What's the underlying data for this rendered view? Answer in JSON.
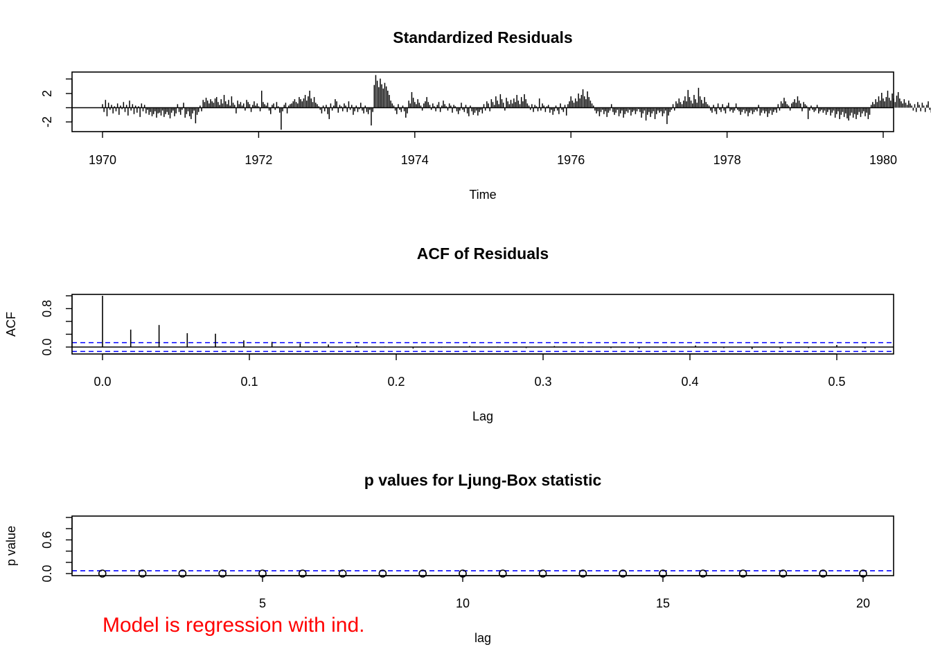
{
  "chart_data": [
    {
      "type": "bar",
      "title": "Standardized Residuals",
      "xlabel": "Time",
      "ylabel": "",
      "xlim": [
        1970,
        1979.75
      ],
      "ylim": [
        -3.2,
        4.8
      ],
      "x_ticks": [
        "1970",
        "1972",
        "1974",
        "1976",
        "1978",
        "1980"
      ],
      "y_ticks": [
        "-2",
        "2"
      ],
      "x_start": 1970,
      "x_step": 0.019230769,
      "values": [
        0.5,
        -0.6,
        1.1,
        -1.2,
        0.7,
        -0.3,
        0.4,
        -0.8,
        0.2,
        -0.5,
        0.6,
        -1.0,
        0.3,
        -0.2,
        0.8,
        -0.6,
        0.4,
        -1.1,
        1.0,
        -0.4,
        0.5,
        -0.9,
        0.3,
        -0.7,
        0.2,
        -1.3,
        0.6,
        -0.5,
        0.4,
        -0.8,
        -0.3,
        -1.0,
        -0.6,
        -1.2,
        -0.9,
        -0.5,
        -1.4,
        -0.8,
        -0.7,
        -1.1,
        -0.4,
        -1.3,
        -0.9,
        -0.6,
        -1.0,
        -1.5,
        -0.7,
        -0.4,
        -1.2,
        -0.8,
        0.5,
        -0.6,
        -1.0,
        -0.3,
        0.7,
        -1.4,
        -0.9,
        -0.5,
        -1.2,
        -1.6,
        -0.8,
        -0.4,
        -2.2,
        -1.0,
        -0.6,
        0.3,
        -0.5,
        1.1,
        0.8,
        1.4,
        1.0,
        0.6,
        1.2,
        0.9,
        0.7,
        1.3,
        1.5,
        0.8,
        0.4,
        1.2,
        0.6,
        1.8,
        0.9,
        0.5,
        1.1,
        0.3,
        1.6,
        0.7,
        0.4,
        -0.8,
        1.0,
        0.5,
        0.8,
        0.3,
        0.6,
        -0.4,
        1.1,
        0.8,
        0.5,
        -0.6,
        0.4,
        0.9,
        0.3,
        0.6,
        0.2,
        -0.5,
        2.4,
        0.8,
        0.5,
        0.3,
        0.7,
        -0.4,
        -0.9,
        0.4,
        0.6,
        -0.3,
        0.8,
        0.2,
        -0.7,
        -3.1,
        -0.5,
        0.4,
        0.7,
        -0.8,
        0.3,
        0.5,
        0.6,
        0.9,
        1.2,
        0.8,
        0.6,
        1.5,
        1.2,
        0.9,
        1.3,
        1.8,
        1.0,
        1.6,
        2.4,
        1.3,
        0.8,
        1.5,
        0.7,
        0.5,
        0.2,
        -0.3,
        -0.8,
        0.3,
        -0.5,
        0.4,
        -0.9,
        -1.6,
        0.6,
        -0.4,
        0.3,
        1.2,
        0.9,
        -0.7,
        0.4,
        0.2,
        -0.5,
        0.6,
        0.3,
        -0.6,
        0.9,
        -0.3,
        0.4,
        -1.0,
        -0.5,
        0.3,
        -0.6,
        -0.2,
        0.7,
        -0.4,
        -0.8,
        0.3,
        -0.6,
        -0.9,
        -0.3,
        -2.5,
        -0.6,
        3.2,
        4.6,
        3.8,
        2.9,
        4.1,
        3.3,
        2.7,
        3.5,
        3.0,
        2.4,
        1.8,
        1.0,
        0.6,
        0.3,
        -0.4,
        -0.9,
        0.5,
        -0.3,
        -0.6,
        0.3,
        -0.5,
        -1.4,
        -0.8,
        1.0,
        0.6,
        2.2,
        1.4,
        0.8,
        0.5,
        1.2,
        0.7,
        0.3,
        -0.4,
        0.6,
        0.9,
        1.5,
        0.8,
        0.4,
        -0.3,
        0.6,
        0.2,
        -0.5,
        0.4,
        0.8,
        -0.6,
        0.3,
        1.0,
        0.5,
        0.2,
        -0.4,
        0.6,
        0.3,
        -0.7,
        0.4,
        0.2,
        -0.5,
        -0.9,
        -0.4,
        0.7,
        -0.3,
        -0.6,
        0.4,
        -0.8,
        -1.2,
        0.3,
        -0.5,
        -1.0,
        -0.7,
        -0.4,
        -1.1,
        -0.6,
        -0.3,
        -0.8,
        0.5,
        -0.4,
        0.9,
        0.6,
        -0.5,
        1.2,
        0.8,
        0.4,
        1.6,
        1.0,
        0.5,
        1.9,
        1.2,
        0.7,
        -0.4,
        1.4,
        0.9,
        0.5,
        1.1,
        0.6,
        1.3,
        0.8,
        1.8,
        1.0,
        0.5,
        1.5,
        0.9,
        1.9,
        1.2,
        0.6,
        0.3,
        -0.3,
        0.5,
        -0.6,
        0.4,
        0.2,
        -0.5,
        1.3,
        -0.4,
        0.6,
        0.3,
        -0.6,
        0.2,
        0.4,
        -0.7,
        -0.3,
        -1.0,
        -0.5,
        0.3,
        -0.4,
        -0.9,
        0.6,
        -0.3,
        -0.6,
        0.4,
        -1.1,
        0.5,
        0.9,
        1.6,
        1.0,
        0.7,
        1.3,
        0.9,
        2.0,
        1.3,
        1.8,
        2.6,
        1.6,
        1.2,
        2.3,
        1.5,
        1.0,
        0.6,
        0.3,
        -0.4,
        -0.8,
        -0.5,
        -1.2,
        -0.6,
        -0.3,
        -0.9,
        -0.5,
        -1.3,
        -0.7,
        -0.4,
        0.5,
        -0.6,
        -1.0,
        -0.7,
        -0.3,
        -1.2,
        -0.8,
        -0.4,
        -1.4,
        -0.9,
        -0.5,
        -0.7,
        -0.3,
        -1.1,
        -0.6,
        -0.4,
        -0.9,
        -0.5,
        -0.2,
        -0.6,
        -1.4,
        -0.8,
        -0.4,
        -1.8,
        -1.0,
        -0.6,
        -1.3,
        -0.8,
        -0.5,
        -1.6,
        -0.9,
        -0.4,
        -0.7,
        -0.5,
        -1.2,
        -0.8,
        -0.4,
        -2.3,
        -1.1,
        -0.6,
        -0.3,
        0.5,
        -0.4,
        0.9,
        0.6,
        1.3,
        0.8,
        0.5,
        1.0,
        1.6,
        0.9,
        2.5,
        1.5,
        1.0,
        0.6,
        1.8,
        1.2,
        0.7,
        2.8,
        1.6,
        1.1,
        0.6,
        1.5,
        0.8,
        0.5,
        0.3,
        -0.4,
        -0.7,
        0.4,
        -0.5,
        -0.9,
        0.6,
        -0.3,
        -0.6,
        0.5,
        -0.4,
        -0.8,
        0.3,
        0.7,
        -0.5,
        -0.3,
        -0.7,
        -0.4,
        0.6,
        -0.3,
        -0.5,
        -1.0,
        -0.6,
        -0.3,
        -0.8,
        -0.5,
        -1.2,
        -0.7,
        -0.4,
        -0.9,
        -0.6,
        -0.3,
        -0.5,
        0.4,
        -1.1,
        -0.7,
        -0.4,
        -0.8,
        -0.5,
        -1.3,
        -0.8,
        -0.4,
        -1.0,
        -0.6,
        -0.3,
        -0.7,
        0.5,
        -0.4,
        0.9,
        0.6,
        1.4,
        0.9,
        0.5,
        0.3,
        -0.4,
        0.6,
        0.8,
        1.2,
        0.7,
        1.6,
        1.0,
        0.6,
        -0.5,
        0.8,
        0.5,
        0.3,
        -1.6,
        -0.4,
        0.3,
        -0.3,
        -0.6,
        -0.4,
        0.4,
        -0.8,
        -0.5,
        -0.3,
        -0.7,
        -0.4,
        -1.0,
        -0.6,
        -0.3,
        -1.1,
        -0.7,
        -0.4,
        -1.4,
        -0.9,
        -0.5,
        -1.6,
        -1.0,
        -0.6,
        -1.3,
        -0.8,
        -1.5,
        -1.8,
        -1.1,
        -0.7,
        -1.4,
        -0.9,
        -1.6,
        -1.0,
        -0.6,
        -1.3,
        -0.8,
        -0.5,
        -1.2,
        -0.7,
        -1.6,
        -1.0,
        0.4,
        0.8,
        0.5,
        1.2,
        0.8,
        1.6,
        1.0,
        2.1,
        1.3,
        0.9,
        1.5,
        2.4,
        1.4,
        1.0,
        2.0,
        1.3,
        0.8,
        1.7,
        2.2,
        1.3,
        0.9,
        0.6,
        1.2,
        0.7,
        0.4,
        1.0,
        0.6,
        0.3,
        -0.4,
        0.5,
        -0.6,
        0.8,
        0.4,
        -0.5,
        0.7,
        0.3,
        -0.6,
        0.4,
        0.9,
        -0.3,
        -0.7,
        0.5,
        0.3,
        -0.8,
        -0.4,
        0.6,
        -0.3,
        -0.6,
        0.3,
        0.5,
        -0.5,
        -0.9,
        -0.4,
        0.6,
        -0.7,
        -1.0,
        -0.6,
        -0.3,
        -1.2,
        -0.7,
        -0.4,
        -0.9,
        0.6,
        0.9,
        0.6,
        1.5,
        0.9,
        2.1,
        1.2,
        0.8,
        1.6,
        1.0,
        0.6,
        1.3,
        0.8,
        0.5,
        -0.4,
        0.7,
        -0.5,
        0.9,
        0.6,
        0.3,
        1.1,
        0.7,
        1.5,
        0.9,
        1.2,
        0.6,
        1.6,
        1.0,
        1.3,
        0.8,
        0.5,
        1.4,
        0.9,
        0.6,
        0.3,
        -0.4,
        0.5,
        0.8,
        0.5,
        -0.6,
        -0.3,
        -0.7,
        -0.4,
        -0.9,
        -0.5,
        -0.3,
        -0.7,
        0.4,
        -0.5,
        -1.0,
        -1.6,
        -0.6,
        0.4,
        0.8,
        1.4
      ],
      "x_note": "weekly observations from 1970 to about 1979.75"
    },
    {
      "type": "bar",
      "title": "ACF of Residuals",
      "xlabel": "Lag",
      "ylabel": "ACF",
      "xlim": [
        0,
        0.52
      ],
      "ylim": [
        -0.1,
        1.0
      ],
      "x_ticks": [
        "0.0",
        "0.1",
        "0.2",
        "0.3",
        "0.4",
        "0.5"
      ],
      "y_ticks": [
        "0.0",
        "0.8"
      ],
      "lags": [
        0.0,
        0.0192,
        0.0385,
        0.0577,
        0.0769,
        0.0962,
        0.1154,
        0.1346,
        0.1538,
        0.1731,
        0.1923,
        0.2115,
        0.2308,
        0.25,
        0.2692,
        0.2885,
        0.3077,
        0.3269,
        0.3462,
        0.3654,
        0.3846,
        0.4038,
        0.4231,
        0.4423,
        0.4615,
        0.4808,
        0.5,
        0.5192
      ],
      "values": [
        1.0,
        0.34,
        0.43,
        0.27,
        0.26,
        0.13,
        0.1,
        0.07,
        0.05,
        0.03,
        0.01,
        -0.03,
        -0.01,
        0.02,
        0.01,
        -0.02,
        0.02,
        0.01,
        -0.02,
        -0.03,
        0.01,
        0.03,
        -0.02,
        -0.04,
        -0.03,
        -0.02,
        0.04,
        -0.03
      ],
      "ci": 0.086,
      "ci_color": "#0000ff"
    },
    {
      "type": "scatter",
      "title": "p values for Ljung-Box statistic",
      "xlabel": "lag",
      "ylabel": "p value",
      "xlim": [
        0.2,
        20.8
      ],
      "ylim": [
        0.0,
        1.0
      ],
      "x_ticks": [
        "5",
        "10",
        "15",
        "20"
      ],
      "y_ticks": [
        "0.0",
        "0.6"
      ],
      "x": [
        1,
        2,
        3,
        4,
        5,
        6,
        7,
        8,
        9,
        10,
        11,
        12,
        13,
        14,
        15,
        16,
        17,
        18,
        19,
        20
      ],
      "y": [
        0,
        0,
        0,
        0,
        0,
        0,
        0,
        0,
        0,
        0,
        0,
        0,
        0,
        0,
        0,
        0,
        0,
        0,
        0,
        0
      ],
      "reference_line": 0.05,
      "reference_color": "#0000ff"
    }
  ],
  "note": {
    "text": "Model is regression with ind.",
    "color": "#ff0000"
  }
}
